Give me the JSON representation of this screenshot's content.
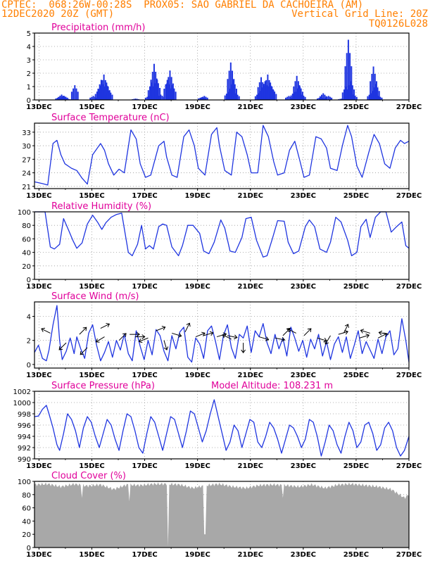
{
  "header": {
    "line1": "CPTEC:  068:26W-00:28S  PROX05: SAO GABRIEL DA CACHOEIRA (AM)",
    "line2": "12DEC2020 20Z (GMT)",
    "grid_note": "Vertical Grid Line: 20Z",
    "run_code": "TQ0126L028"
  },
  "colors": {
    "header": "#ff7f00",
    "title": "#e0009a",
    "series": "#1f35e0",
    "cloud": "#a8a8a8",
    "grid": "#9a9a9a"
  },
  "x_axis": {
    "start": "12DEC2020 20Z",
    "end": "27DEC2020 00Z",
    "tick_labels": [
      "13DEC",
      "15DEC",
      "17DEC",
      "19DEC",
      "21DEC",
      "23DEC",
      "25DEC",
      "27DEC"
    ],
    "tick_days": [
      0.17,
      2.17,
      4.17,
      6.17,
      8.17,
      10.17,
      12.17,
      14.17
    ],
    "end_day": 14.17
  },
  "chart_data": [
    {
      "type": "bar",
      "title": "Precipitation (mm/h)",
      "ylim": [
        0,
        5
      ],
      "yticks": [
        0,
        1,
        2,
        3,
        4,
        5
      ],
      "points": [
        [
          0.9,
          0.2
        ],
        [
          1.0,
          0.4
        ],
        [
          1.1,
          0.3
        ],
        [
          1.2,
          0.1
        ],
        [
          1.5,
          1.1
        ],
        [
          2.2,
          0.3
        ],
        [
          2.4,
          0.8
        ],
        [
          2.5,
          1.5
        ],
        [
          2.6,
          1.9
        ],
        [
          2.7,
          1.3
        ],
        [
          2.8,
          0.7
        ],
        [
          3.8,
          0.1
        ],
        [
          4.3,
          0.3
        ],
        [
          4.4,
          1.3
        ],
        [
          4.5,
          2.7
        ],
        [
          4.6,
          1.6
        ],
        [
          4.75,
          0.4
        ],
        [
          5.0,
          1.5
        ],
        [
          5.1,
          2.2
        ],
        [
          5.2,
          1.1
        ],
        [
          6.3,
          0.2
        ],
        [
          6.4,
          0.3
        ],
        [
          7.3,
          0.6
        ],
        [
          7.4,
          2.8
        ],
        [
          7.5,
          1.5
        ],
        [
          7.6,
          0.5
        ],
        [
          8.45,
          0.5
        ],
        [
          8.55,
          1.7
        ],
        [
          8.65,
          1.2
        ],
        [
          8.7,
          1.4
        ],
        [
          8.8,
          1.9
        ],
        [
          8.9,
          1.3
        ],
        [
          9.0,
          0.8
        ],
        [
          9.6,
          0.3
        ],
        [
          9.8,
          0.6
        ],
        [
          9.9,
          1.8
        ],
        [
          10.0,
          1.1
        ],
        [
          10.1,
          0.4
        ],
        [
          10.8,
          0.2
        ],
        [
          10.9,
          0.5
        ],
        [
          11.1,
          0.3
        ],
        [
          11.6,
          0.1
        ],
        [
          11.75,
          1.0
        ],
        [
          11.85,
          4.5
        ],
        [
          11.95,
          1.4
        ],
        [
          12.05,
          0.4
        ],
        [
          12.7,
          0.5
        ],
        [
          12.8,
          2.5
        ],
        [
          12.9,
          1.2
        ],
        [
          13.0,
          0.3
        ]
      ]
    },
    {
      "type": "line",
      "title": "Surface Temperature (nC)",
      "ylim": [
        20.5,
        35
      ],
      "yticks": [
        21,
        24,
        27,
        30,
        33
      ],
      "x": [
        0,
        0.3,
        0.5,
        0.7,
        0.85,
        1.0,
        1.15,
        1.4,
        1.6,
        1.8,
        2.0,
        2.2,
        2.5,
        2.65,
        2.8,
        3.0,
        3.2,
        3.4,
        3.65,
        3.85,
        4.0,
        4.2,
        4.4,
        4.7,
        4.9,
        5.0,
        5.2,
        5.4,
        5.65,
        5.85,
        6.05,
        6.2,
        6.45,
        6.7,
        6.9,
        7.0,
        7.2,
        7.45,
        7.65,
        7.85,
        8.05,
        8.2,
        8.45,
        8.65,
        8.85,
        9.05,
        9.2,
        9.45,
        9.65,
        9.85,
        10.05,
        10.2,
        10.4,
        10.65,
        10.85,
        11.05,
        11.2,
        11.45,
        11.65,
        11.85,
        12.0,
        12.2,
        12.4,
        12.65,
        12.85,
        13.05,
        13.25,
        13.45,
        13.65,
        13.85,
        14.0,
        14.17
      ],
      "values": [
        22.0,
        21.6,
        21.3,
        30.5,
        31.2,
        28.0,
        26.0,
        25.0,
        24.5,
        22.8,
        21.5,
        28.0,
        30.5,
        29.0,
        26.0,
        23.5,
        24.8,
        24.0,
        33.5,
        31.5,
        26.0,
        23.0,
        23.5,
        30.0,
        31.0,
        27.5,
        23.5,
        23.0,
        32.0,
        33.5,
        30.0,
        25.0,
        23.5,
        32.5,
        34.0,
        30.0,
        24.5,
        23.5,
        33.0,
        32.0,
        28.0,
        24.0,
        24.0,
        34.5,
        32.0,
        26.5,
        23.5,
        24.0,
        29.0,
        31.0,
        26.5,
        23.0,
        23.5,
        32.0,
        31.5,
        29.5,
        25.0,
        24.5,
        30.0,
        34.5,
        32.0,
        25.5,
        23.0,
        28.5,
        32.5,
        30.5,
        26.0,
        25.0,
        29.5,
        31.2,
        30.5,
        31.0
      ]
    },
    {
      "type": "line",
      "title": "Relative Humidity (%)",
      "ylim": [
        0,
        100
      ],
      "yticks": [
        0,
        20,
        40,
        60,
        80,
        100
      ],
      "x": [
        0,
        0.4,
        0.6,
        0.75,
        0.95,
        1.1,
        1.3,
        1.45,
        1.6,
        1.8,
        2.0,
        2.2,
        2.4,
        2.55,
        2.7,
        2.9,
        3.1,
        3.3,
        3.55,
        3.7,
        3.9,
        4.05,
        4.2,
        4.35,
        4.5,
        4.7,
        4.85,
        5.0,
        5.2,
        5.45,
        5.6,
        5.8,
        6.0,
        6.25,
        6.4,
        6.6,
        6.8,
        7.05,
        7.2,
        7.4,
        7.6,
        7.85,
        8.0,
        8.2,
        8.4,
        8.65,
        8.8,
        9.0,
        9.2,
        9.45,
        9.6,
        9.8,
        10.0,
        10.25,
        10.4,
        10.6,
        10.8,
        11.05,
        11.2,
        11.4,
        11.6,
        11.85,
        12.0,
        12.2,
        12.35,
        12.55,
        12.7,
        12.9,
        13.1,
        13.3,
        13.5,
        13.7,
        13.9,
        14.05,
        14.17
      ],
      "values": [
        100,
        100,
        48,
        45,
        52,
        90,
        72,
        58,
        46,
        54,
        82,
        95,
        84,
        74,
        84,
        92,
        96,
        98,
        40,
        35,
        52,
        80,
        45,
        50,
        45,
        78,
        82,
        80,
        48,
        35,
        50,
        80,
        80,
        68,
        42,
        38,
        55,
        88,
        76,
        42,
        40,
        62,
        90,
        92,
        58,
        33,
        35,
        60,
        87,
        86,
        55,
        38,
        42,
        78,
        88,
        78,
        45,
        40,
        55,
        92,
        85,
        58,
        35,
        40,
        78,
        89,
        62,
        92,
        100,
        100,
        70,
        78,
        85,
        50,
        46
      ]
    },
    {
      "type": "line",
      "title": "Surface Wind (m/s)",
      "ylim": [
        -0.3,
        5.2
      ],
      "yticks": [
        0,
        2,
        4
      ],
      "x": [
        0,
        0.15,
        0.3,
        0.45,
        0.55,
        0.7,
        0.85,
        0.95,
        1.05,
        1.2,
        1.35,
        1.5,
        1.6,
        1.75,
        1.9,
        2.05,
        2.2,
        2.35,
        2.5,
        2.65,
        2.8,
        2.95,
        3.1,
        3.25,
        3.4,
        3.55,
        3.7,
        3.85,
        4.0,
        4.15,
        4.3,
        4.45,
        4.6,
        4.75,
        4.9,
        5.05,
        5.2,
        5.35,
        5.5,
        5.65,
        5.8,
        5.95,
        6.1,
        6.25,
        6.4,
        6.55,
        6.7,
        6.85,
        7.0,
        7.15,
        7.3,
        7.45,
        7.6,
        7.75,
        7.9,
        8.05,
        8.2,
        8.35,
        8.5,
        8.65,
        8.8,
        8.95,
        9.1,
        9.25,
        9.4,
        9.55,
        9.7,
        9.85,
        10.0,
        10.15,
        10.3,
        10.45,
        10.6,
        10.75,
        10.9,
        11.05,
        11.2,
        11.35,
        11.5,
        11.65,
        11.8,
        11.95,
        12.1,
        12.25,
        12.4,
        12.55,
        12.7,
        12.85,
        13.0,
        13.15,
        13.3,
        13.45,
        13.6,
        13.75,
        13.9,
        14.05,
        14.17
      ],
      "values": [
        1.0,
        1.6,
        0.5,
        0.3,
        1.2,
        3.3,
        4.9,
        2.0,
        0.4,
        1.1,
        2.2,
        0.9,
        2.3,
        1.3,
        0.5,
        2.6,
        3.3,
        1.6,
        0.3,
        1.0,
        1.9,
        0.6,
        2.0,
        1.2,
        2.5,
        0.9,
        0.3,
        2.8,
        1.5,
        0.4,
        2.0,
        0.8,
        2.9,
        2.4,
        1.1,
        0.3,
        2.4,
        1.3,
        2.7,
        3.1,
        0.6,
        0.2,
        2.2,
        1.7,
        0.5,
        2.8,
        3.2,
        1.9,
        0.4,
        2.4,
        3.3,
        1.4,
        0.5,
        2.5,
        2.2,
        3.2,
        1.0,
        2.8,
        2.3,
        3.4,
        1.8,
        0.9,
        2.5,
        1.3,
        2.2,
        0.7,
        3.1,
        2.2,
        1.1,
        2.0,
        0.6,
        2.1,
        1.3,
        2.5,
        0.7,
        1.9,
        0.4,
        1.7,
        2.3,
        1.0,
        2.3,
        0.5,
        1.6,
        2.8,
        0.9,
        1.9,
        1.2,
        0.5,
        2.1,
        0.9,
        2.3,
        2.8,
        0.8,
        1.3,
        3.8,
        2.0,
        0.2
      ]
    },
    {
      "type": "line",
      "title": "Surface Pressure (hPa)",
      "note": "Model Altitude: 108.231 m",
      "ylim": [
        990,
        1002
      ],
      "yticks": [
        990,
        992,
        994,
        996,
        998,
        1000,
        1002
      ],
      "x": [
        0,
        0.15,
        0.3,
        0.45,
        0.55,
        0.7,
        0.85,
        0.95,
        1.1,
        1.25,
        1.4,
        1.55,
        1.7,
        1.85,
        2.0,
        2.15,
        2.3,
        2.45,
        2.6,
        2.75,
        2.9,
        3.05,
        3.2,
        3.35,
        3.5,
        3.65,
        3.8,
        3.95,
        4.1,
        4.25,
        4.4,
        4.55,
        4.7,
        4.85,
        5.0,
        5.15,
        5.3,
        5.45,
        5.6,
        5.75,
        5.9,
        6.05,
        6.2,
        6.35,
        6.5,
        6.65,
        6.8,
        6.95,
        7.1,
        7.25,
        7.4,
        7.55,
        7.7,
        7.85,
        8.0,
        8.15,
        8.3,
        8.45,
        8.6,
        8.75,
        8.9,
        9.05,
        9.2,
        9.35,
        9.5,
        9.65,
        9.8,
        9.95,
        10.1,
        10.25,
        10.4,
        10.55,
        10.7,
        10.85,
        11.0,
        11.15,
        11.3,
        11.45,
        11.6,
        11.75,
        11.9,
        12.05,
        12.2,
        12.35,
        12.5,
        12.65,
        12.8,
        12.95,
        13.1,
        13.25,
        13.4,
        13.55,
        13.7,
        13.85,
        14.0,
        14.17
      ],
      "values": [
        997.5,
        997.6,
        998.8,
        999.5,
        998.0,
        995.5,
        992.5,
        991.5,
        994.5,
        998.0,
        997.0,
        995.0,
        992.0,
        995.5,
        997.5,
        996.5,
        994.0,
        992.0,
        994.5,
        997.0,
        996.0,
        993.5,
        991.5,
        995.0,
        998.0,
        997.5,
        995.0,
        992.0,
        991.0,
        994.5,
        997.5,
        996.5,
        994.0,
        991.5,
        994.5,
        997.5,
        997.0,
        994.5,
        992.0,
        995.0,
        998.5,
        998.0,
        995.5,
        993.0,
        995.0,
        998.0,
        1000.5,
        997.5,
        994.5,
        991.5,
        993.0,
        996.0,
        995.0,
        992.0,
        994.5,
        997.0,
        996.5,
        993.0,
        992.0,
        994.0,
        996.5,
        995.5,
        993.5,
        991.0,
        993.5,
        996.0,
        995.5,
        994.0,
        992.0,
        993.5,
        997.0,
        996.5,
        994.0,
        990.5,
        993.0,
        996.0,
        995.0,
        992.5,
        991.0,
        994.0,
        996.5,
        995.0,
        992.0,
        993.0,
        996.0,
        996.5,
        994.5,
        991.5,
        992.5,
        995.5,
        996.5,
        995.0,
        992.0,
        990.5,
        991.5,
        994.0
      ]
    },
    {
      "type": "area",
      "title": "Cloud Cover (%)",
      "ylim": [
        0,
        100
      ],
      "yticks": [
        0,
        20,
        40,
        60,
        80,
        100
      ],
      "x": [
        0,
        0.5,
        1.0,
        1.5,
        2.0,
        2.5,
        3.0,
        3.5,
        4.0,
        4.5,
        5.0,
        5.5,
        6.0,
        6.5,
        7.0,
        7.5,
        8.0,
        8.5,
        9.0,
        9.5,
        10.0,
        10.5,
        11.0,
        11.5,
        12.0,
        12.5,
        13.0,
        13.5,
        14.0,
        14.17
      ],
      "values": [
        95,
        96,
        92,
        96,
        93,
        95,
        88,
        95,
        94,
        96,
        96,
        95,
        90,
        94,
        96,
        92,
        90,
        94,
        95,
        94,
        92,
        95,
        90,
        95,
        96,
        94,
        92,
        88,
        75,
        80
      ],
      "dips": [
        [
          5.05,
          2
        ],
        [
          6.45,
          20
        ],
        [
          3.6,
          70
        ],
        [
          1.8,
          75
        ],
        [
          9.4,
          75
        ]
      ]
    }
  ]
}
